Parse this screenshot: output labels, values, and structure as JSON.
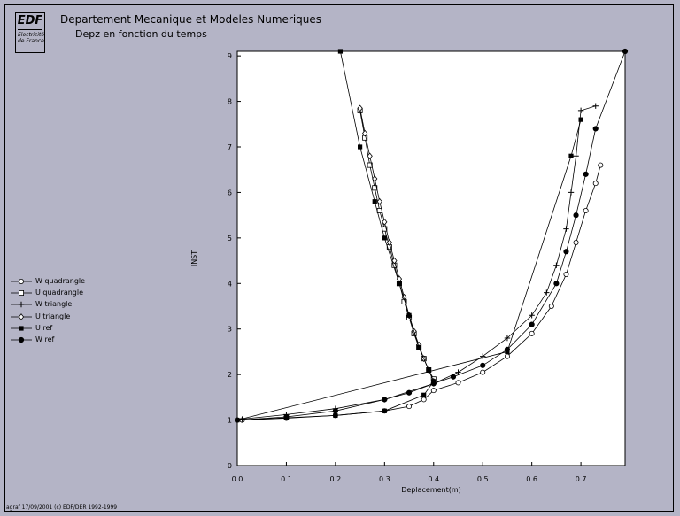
{
  "header": {
    "logo_text": "EDF",
    "logo_subtext": "Electricité de France",
    "organization": "Departement Mecanique et Modeles Numeriques",
    "subtitle": "Depz en fonction du temps"
  },
  "footer": {
    "text": "agraf 17/09/2001 (c) EDF/DER 1992-1999"
  },
  "colors": {
    "background": "#b4b4c6",
    "plot_background": "#ffffff",
    "ink": "#000000"
  },
  "chart_data": {
    "type": "line",
    "title": "Depz en fonction du temps",
    "xlabel": "Deplacement(m)",
    "ylabel": "INST",
    "xlim": [
      0,
      0.79
    ],
    "ylim": [
      0,
      9.1
    ],
    "xticks": [
      "0.0",
      "0.1",
      "0.2",
      "0.3",
      "0.4",
      "0.5",
      "0.6",
      "0.7"
    ],
    "yticks": [
      "0",
      "1",
      "2",
      "3",
      "4",
      "5",
      "6",
      "7",
      "8",
      "9"
    ],
    "grid": false,
    "legend_position": "left",
    "series": [
      {
        "name": "W quadrangle",
        "marker": "circle-open",
        "x": [
          0.01,
          0.1,
          0.2,
          0.3,
          0.35,
          0.38,
          0.4,
          0.45,
          0.5,
          0.55,
          0.6,
          0.64,
          0.67,
          0.69,
          0.71,
          0.73,
          0.74
        ],
        "y": [
          1.0,
          1.04,
          1.1,
          1.2,
          1.3,
          1.45,
          1.65,
          1.82,
          2.05,
          2.4,
          2.9,
          3.5,
          4.2,
          4.9,
          5.6,
          6.2,
          6.6
        ]
      },
      {
        "name": "U quadrangle",
        "marker": "square-open",
        "x": [
          0.25,
          0.26,
          0.27,
          0.28,
          0.29,
          0.3,
          0.31,
          0.32,
          0.33,
          0.34,
          0.35,
          0.36,
          0.37,
          0.38,
          0.39,
          0.4
        ],
        "y": [
          7.8,
          7.2,
          6.6,
          6.1,
          5.6,
          5.2,
          4.8,
          4.4,
          4.0,
          3.6,
          3.25,
          2.9,
          2.6,
          2.35,
          2.1,
          1.9
        ]
      },
      {
        "name": "W triangle",
        "marker": "plus",
        "x": [
          0.01,
          0.1,
          0.2,
          0.3,
          0.4,
          0.45,
          0.5,
          0.55,
          0.6,
          0.63,
          0.65,
          0.67,
          0.68,
          0.69,
          0.7,
          0.73
        ],
        "y": [
          1.02,
          1.12,
          1.25,
          1.45,
          1.8,
          2.05,
          2.4,
          2.8,
          3.3,
          3.8,
          4.4,
          5.2,
          6.0,
          6.8,
          7.8,
          7.9
        ]
      },
      {
        "name": "U triangle",
        "marker": "diamond-open",
        "x": [
          0.25,
          0.26,
          0.27,
          0.28,
          0.29,
          0.3,
          0.31,
          0.32,
          0.33,
          0.34,
          0.35,
          0.36,
          0.37,
          0.38,
          0.39,
          0.4
        ],
        "y": [
          7.85,
          7.3,
          6.8,
          6.3,
          5.8,
          5.35,
          4.9,
          4.5,
          4.1,
          3.7,
          3.3,
          2.95,
          2.65,
          2.35,
          2.1,
          1.85
        ]
      },
      {
        "name": "U ref",
        "marker": "square-filled",
        "x": [
          0.21,
          0.25,
          0.28,
          0.3,
          0.33,
          0.35,
          0.37,
          0.39,
          0.4,
          0.38,
          0.3,
          0.2,
          0.1,
          0.0,
          0.55,
          0.68,
          0.7
        ],
        "y": [
          9.1,
          7.0,
          5.8,
          5.0,
          4.0,
          3.3,
          2.6,
          2.1,
          1.85,
          1.55,
          1.2,
          1.1,
          1.05,
          1.0,
          2.5,
          6.8,
          7.6
        ]
      },
      {
        "name": "W ref",
        "marker": "circle-filled",
        "x": [
          0.0,
          0.1,
          0.2,
          0.3,
          0.35,
          0.4,
          0.44,
          0.5,
          0.55,
          0.6,
          0.65,
          0.67,
          0.69,
          0.71,
          0.73,
          0.79
        ],
        "y": [
          1.0,
          1.07,
          1.2,
          1.45,
          1.6,
          1.8,
          1.95,
          2.2,
          2.55,
          3.1,
          4.0,
          4.7,
          5.5,
          6.4,
          7.4,
          9.1
        ]
      }
    ]
  }
}
